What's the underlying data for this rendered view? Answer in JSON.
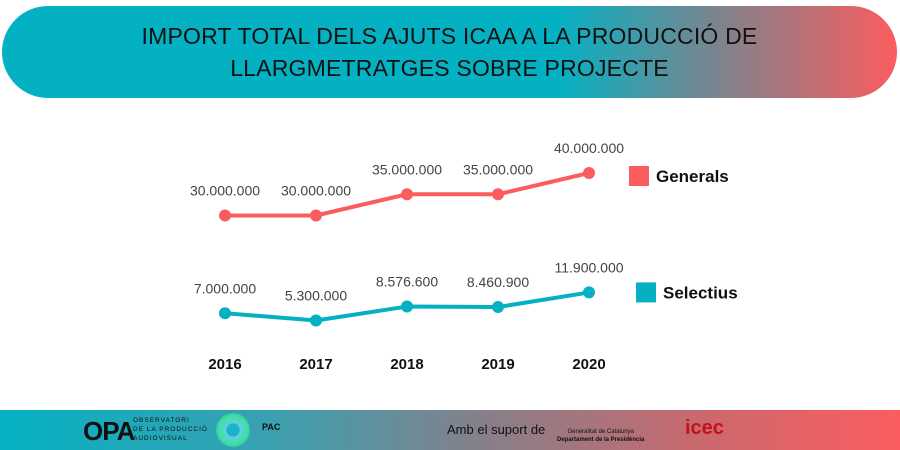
{
  "title": "IMPORT TOTAL DELS AJUTS ICAA A LA PRODUCCIÓ DE LLARGMETRATGES SOBRE PROJECTE",
  "chart_data": {
    "type": "line",
    "title": "IMPORT TOTAL DELS AJUTS ICAA A LA PRODUCCIÓ DE LLARGMETRATGES SOBRE PROJECTE",
    "categories": [
      "2016",
      "2017",
      "2018",
      "2019",
      "2020"
    ],
    "series": [
      {
        "name": "Generals",
        "color": "#fb5d5f",
        "values": [
          30000000,
          30000000,
          35000000,
          35000000,
          40000000
        ],
        "labels": [
          "30.000.000",
          "30.000.000",
          "35.000.000",
          "35.000.000",
          "40.000.000"
        ]
      },
      {
        "name": "Selectius",
        "color": "#04b1c3",
        "values": [
          7000000,
          5300000,
          8576600,
          8460900,
          11900000
        ],
        "labels": [
          "7.000.000",
          "5.300.000",
          "8.576.600",
          "8.460.900",
          "11.900.000"
        ]
      }
    ],
    "legend": "right",
    "grid": false
  },
  "footer": {
    "opa": "OPA",
    "opa_sub": [
      "OBSERVATORI",
      "DE LA PRODUCCIÓ",
      "AUDIOVISUAL"
    ],
    "pac": "PAC",
    "support": "Amb el suport de",
    "gen1": "Generalitat de Catalunya",
    "gen2": "Departament de la Presidència",
    "icec": "icec"
  }
}
